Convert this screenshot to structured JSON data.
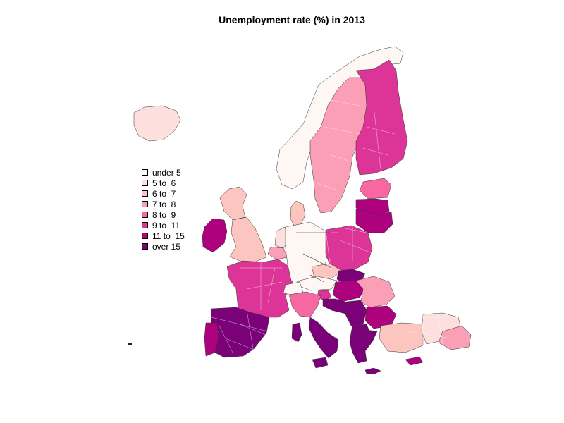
{
  "title": "Unemployment rate (%) in 2013",
  "legend": [
    {
      "label": "under 5",
      "color": "#FFF7F3"
    },
    {
      "label": "5 to  6",
      "color": "#FDE0DD"
    },
    {
      "label": "6 to  7",
      "color": "#FCC5C0"
    },
    {
      "label": "7 to  8",
      "color": "#FA9FB5"
    },
    {
      "label": "8 to  9",
      "color": "#F768A1"
    },
    {
      "label": "9 to  11",
      "color": "#DD3497"
    },
    {
      "label": "11 to  15",
      "color": "#AE017E"
    },
    {
      "label": "over 15",
      "color": "#7A0177"
    }
  ],
  "regions": [
    {
      "name": "Iceland",
      "class": 1
    },
    {
      "name": "Norway",
      "class": 0
    },
    {
      "name": "Sweden",
      "class": 3
    },
    {
      "name": "Finland",
      "class": 5
    },
    {
      "name": "Estonia",
      "class": 4
    },
    {
      "name": "Latvia",
      "class": 6
    },
    {
      "name": "Lithuania",
      "class": 6
    },
    {
      "name": "Denmark",
      "class": 2
    },
    {
      "name": "Scotland",
      "class": 2
    },
    {
      "name": "Ireland",
      "class": 6
    },
    {
      "name": "England",
      "class": 2
    },
    {
      "name": "Netherlands",
      "class": 1
    },
    {
      "name": "Belgium",
      "class": 3
    },
    {
      "name": "France",
      "class": 5
    },
    {
      "name": "Germany",
      "class": 0
    },
    {
      "name": "Poland",
      "class": 5
    },
    {
      "name": "Czechia",
      "class": 2
    },
    {
      "name": "Austria",
      "class": 0
    },
    {
      "name": "Switzerland",
      "class": 0
    },
    {
      "name": "Slovakia",
      "class": 7
    },
    {
      "name": "Hungary",
      "class": 6
    },
    {
      "name": "Slovenia",
      "class": 5
    },
    {
      "name": "Croatia",
      "class": 7
    },
    {
      "name": "Serbia",
      "class": 7
    },
    {
      "name": "Romania",
      "class": 3
    },
    {
      "name": "Bulgaria",
      "class": 6
    },
    {
      "name": "Macedonia",
      "class": 7
    },
    {
      "name": "Italy North",
      "class": 4
    },
    {
      "name": "Italy South",
      "class": 7
    },
    {
      "name": "Sardinia",
      "class": 7
    },
    {
      "name": "Sicily",
      "class": 7
    },
    {
      "name": "Spain",
      "class": 7
    },
    {
      "name": "Portugal",
      "class": 6
    },
    {
      "name": "Greece",
      "class": 7
    },
    {
      "name": "Crete",
      "class": 7
    },
    {
      "name": "Turkey West",
      "class": 2
    },
    {
      "name": "Turkey Central",
      "class": 1
    },
    {
      "name": "Turkey East",
      "class": 3
    },
    {
      "name": "Cyprus",
      "class": 6
    }
  ]
}
